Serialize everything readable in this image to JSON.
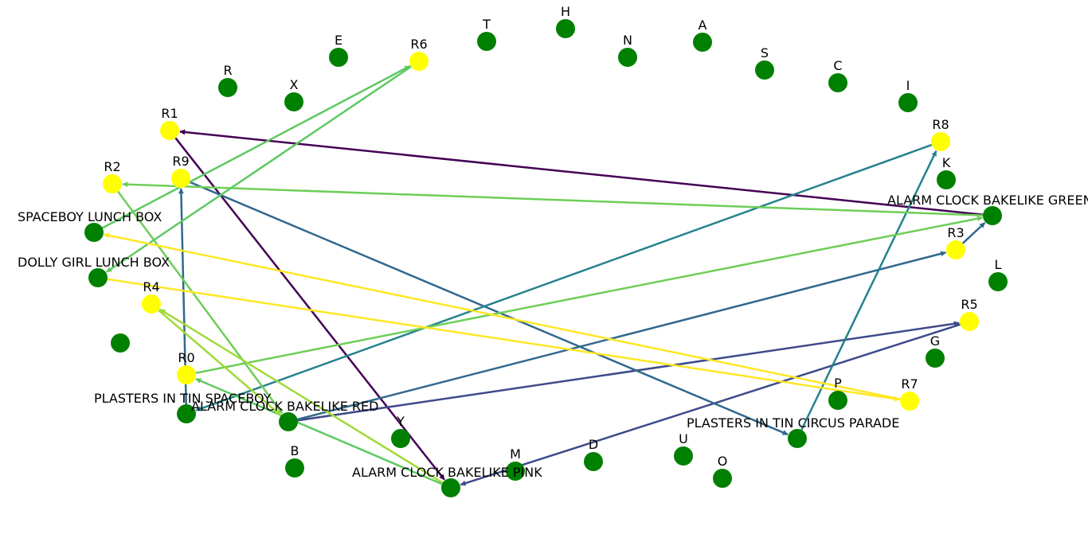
{
  "colors": {
    "item_node": "#008000",
    "rule_node": "#ffff00",
    "background": "#ffffff"
  },
  "nodes": [
    {
      "id": "R",
      "label": "R",
      "type": "item"
    },
    {
      "id": "X",
      "label": "X",
      "type": "item"
    },
    {
      "id": "E",
      "label": "E",
      "type": "item"
    },
    {
      "id": "R6",
      "label": "R6",
      "type": "rule"
    },
    {
      "id": "T",
      "label": "T",
      "type": "item"
    },
    {
      "id": "H",
      "label": "H",
      "type": "item"
    },
    {
      "id": "N",
      "label": "N",
      "type": "item"
    },
    {
      "id": "A",
      "label": "A",
      "type": "item"
    },
    {
      "id": "S",
      "label": "S",
      "type": "item"
    },
    {
      "id": "C",
      "label": "C",
      "type": "item"
    },
    {
      "id": "I",
      "label": "I",
      "type": "item"
    },
    {
      "id": "R1",
      "label": "R1",
      "type": "rule"
    },
    {
      "id": "R8",
      "label": "R8",
      "type": "rule"
    },
    {
      "id": "K",
      "label": "K",
      "type": "item"
    },
    {
      "id": "R2",
      "label": "R2",
      "type": "rule"
    },
    {
      "id": "R9",
      "label": "R9",
      "type": "rule"
    },
    {
      "id": "ACGREEN",
      "label": "ALARM CLOCK BAKELIKE GREEN",
      "type": "item"
    },
    {
      "id": "SPACEBOY",
      "label": "SPACEBOY LUNCH BOX",
      "type": "item"
    },
    {
      "id": "R3",
      "label": "R3",
      "type": "rule"
    },
    {
      "id": "L",
      "label": "L",
      "type": "item"
    },
    {
      "id": "DOLLY",
      "label": "DOLLY GIRL LUNCH BOX",
      "type": "item"
    },
    {
      "id": "R4",
      "label": "R4",
      "type": "rule"
    },
    {
      "id": "R5",
      "label": "R5",
      "type": "rule"
    },
    {
      "id": "BLANK",
      "label": "",
      "type": "item"
    },
    {
      "id": "G",
      "label": "G",
      "type": "item"
    },
    {
      "id": "R0",
      "label": "R0",
      "type": "rule"
    },
    {
      "id": "P",
      "label": "P",
      "type": "item"
    },
    {
      "id": "R7",
      "label": "R7",
      "type": "rule"
    },
    {
      "id": "PLSPACEBOY",
      "label": "PLASTERS IN TIN SPACEBOY",
      "type": "item"
    },
    {
      "id": "ACRED",
      "label": "ALARM CLOCK BAKELIKE RED",
      "type": "item"
    },
    {
      "id": "PLCIRCUS",
      "label": "PLASTERS IN TIN CIRCUS PARADE",
      "type": "item"
    },
    {
      "id": "Y",
      "label": "Y",
      "type": "item"
    },
    {
      "id": "B",
      "label": "B",
      "type": "item"
    },
    {
      "id": "M",
      "label": "M",
      "type": "item"
    },
    {
      "id": "D",
      "label": "D",
      "type": "item"
    },
    {
      "id": "U",
      "label": "U",
      "type": "item"
    },
    {
      "id": "O",
      "label": "O",
      "type": "item"
    },
    {
      "id": "ACPINK",
      "label": "ALARM CLOCK BAKELIKE PINK",
      "type": "item"
    }
  ],
  "edges": [
    {
      "from": "ACGREEN",
      "to": "R1",
      "color": "#440154"
    },
    {
      "from": "R1",
      "to": "ACPINK",
      "color": "#440154"
    },
    {
      "from": "ACRED",
      "to": "R5",
      "color": "#3e4a89"
    },
    {
      "from": "R5",
      "to": "ACPINK",
      "color": "#3e4a89"
    },
    {
      "from": "ACRED",
      "to": "R3",
      "color": "#31688e"
    },
    {
      "from": "R3",
      "to": "ACGREEN",
      "color": "#31688e"
    },
    {
      "from": "R9",
      "to": "PLCIRCUS",
      "color": "#31688e"
    },
    {
      "from": "PLSPACEBOY",
      "to": "R9",
      "color": "#31688e"
    },
    {
      "from": "PLCIRCUS",
      "to": "R8",
      "color": "#26828e"
    },
    {
      "from": "R8",
      "to": "PLSPACEBOY",
      "color": "#26828e"
    },
    {
      "from": "ACGREEN",
      "to": "R2",
      "color": "#6ece58"
    },
    {
      "from": "R2",
      "to": "ACRED",
      "color": "#6ece58"
    },
    {
      "from": "R0",
      "to": "ACGREEN",
      "color": "#6ece58"
    },
    {
      "from": "SPACEBOY",
      "to": "R6",
      "color": "#5ec962"
    },
    {
      "from": "R6",
      "to": "DOLLY",
      "color": "#5ec962"
    },
    {
      "from": "ACPINK",
      "to": "R0",
      "color": "#5ec962"
    },
    {
      "from": "ACPINK",
      "to": "R4",
      "color": "#a0da39"
    },
    {
      "from": "R4",
      "to": "ACRED",
      "color": "#a0da39"
    },
    {
      "from": "DOLLY",
      "to": "R7",
      "color": "#fde725"
    },
    {
      "from": "R7",
      "to": "SPACEBOY",
      "color": "#fde725"
    }
  ]
}
